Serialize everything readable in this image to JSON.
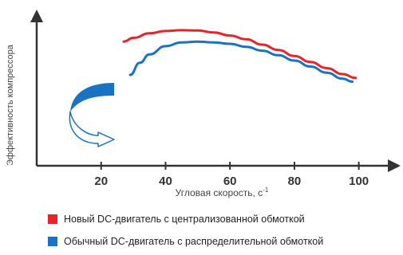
{
  "chart_data": {
    "type": "line",
    "title": "",
    "xlabel": "Угловая скорость, с",
    "xlabel_sup": "-1",
    "ylabel": "Эффективность компрессора",
    "xlim": [
      0,
      110
    ],
    "ylim": [
      0,
      1
    ],
    "x_ticks": [
      "20",
      "40",
      "60",
      "80",
      "100"
    ],
    "x_tick_values": [
      20,
      40,
      60,
      80,
      100
    ],
    "grid": false,
    "legend_position": "bottom",
    "series": [
      {
        "name": "Новый DC-двигатель с централизованной обмоткой",
        "color": "#e8232a",
        "x": [
          27,
          30,
          35,
          40,
          45,
          50,
          55,
          60,
          65,
          70,
          75,
          80,
          85,
          90,
          95,
          99
        ],
        "y": [
          0.82,
          0.845,
          0.875,
          0.89,
          0.895,
          0.893,
          0.88,
          0.86,
          0.835,
          0.8,
          0.765,
          0.725,
          0.685,
          0.645,
          0.605,
          0.58
        ]
      },
      {
        "name": "Обычный DC-двигатель с распределительной обмоткой",
        "color": "#1a73c2",
        "x": [
          29,
          32,
          35,
          40,
          45,
          50,
          55,
          60,
          65,
          70,
          75,
          80,
          85,
          90,
          95,
          98
        ],
        "y": [
          0.6,
          0.68,
          0.735,
          0.79,
          0.815,
          0.82,
          0.815,
          0.805,
          0.785,
          0.76,
          0.73,
          0.695,
          0.655,
          0.615,
          0.575,
          0.555
        ]
      }
    ],
    "annotation": {
      "type": "curved-arrow",
      "meaning": "improvement-from-blue-to-red"
    }
  }
}
